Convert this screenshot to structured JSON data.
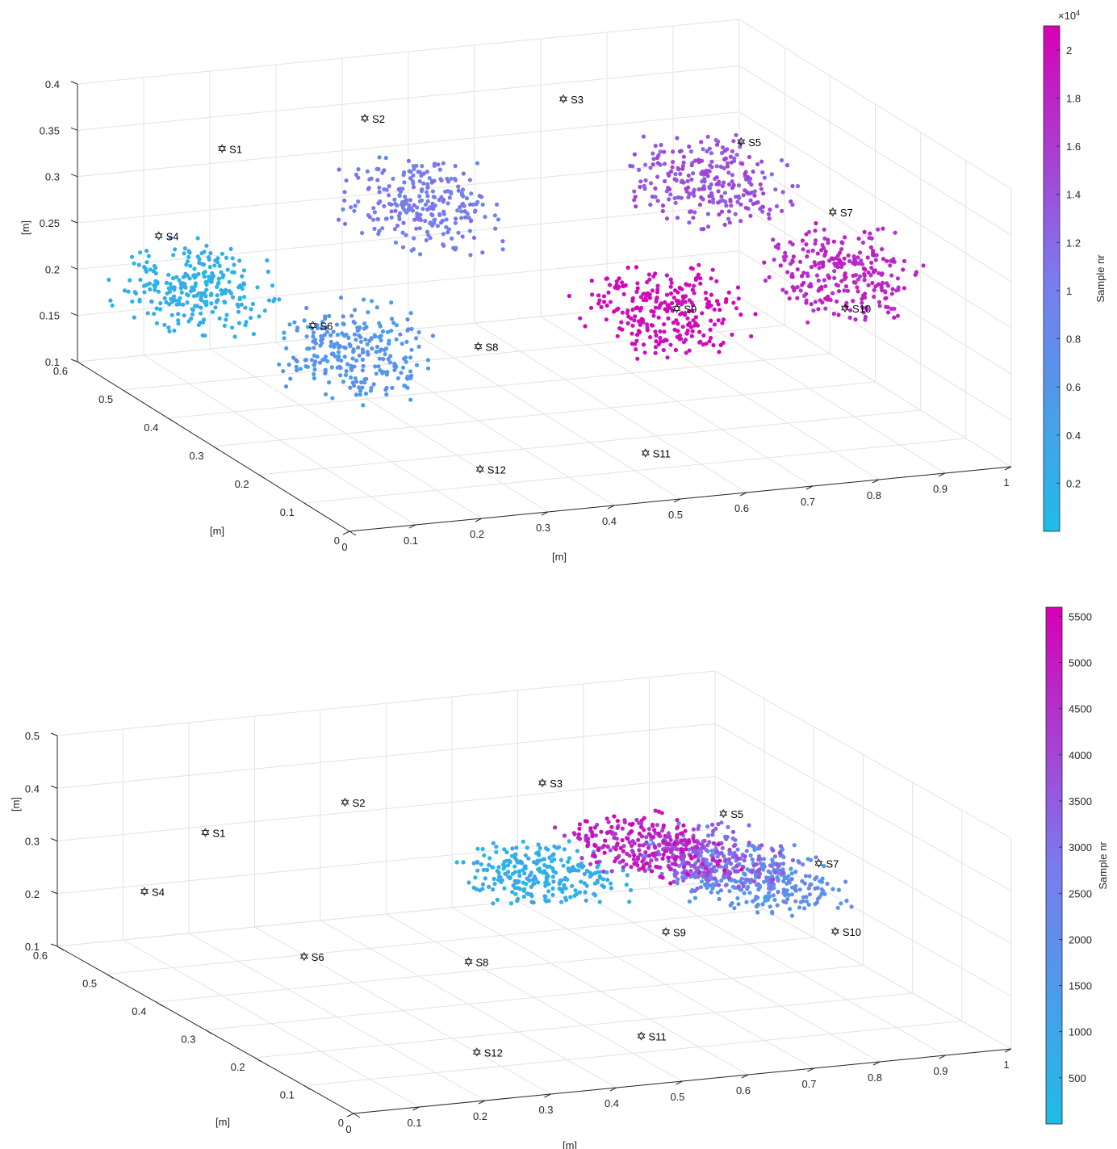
{
  "chart_data": [
    {
      "type": "scatter",
      "view": "3d",
      "axes": {
        "x": {
          "label": "[m]",
          "ticks": [
            "0",
            "0.1",
            "0.2",
            "0.3",
            "0.4",
            "0.5",
            "0.6",
            "0.7",
            "0.8",
            "0.9",
            "1"
          ],
          "range": [
            0,
            1
          ]
        },
        "y": {
          "label": "[m]",
          "ticks": [
            "0",
            "0.1",
            "0.2",
            "0.3",
            "0.4",
            "0.5",
            "0.6"
          ],
          "range": [
            0,
            0.6
          ]
        },
        "z": {
          "label": "[m]",
          "ticks": [
            "0.1",
            "0.15",
            "0.2",
            "0.25",
            "0.3",
            "0.35",
            "0.4"
          ],
          "range": [
            0.1,
            0.4
          ]
        }
      },
      "grid": true,
      "colorbar": {
        "label": "Sample nr",
        "exponent": "×10",
        "exponent_power": "4",
        "ticks": [
          "0.2",
          "0.4",
          "0.6",
          "0.8",
          "1",
          "1.2",
          "1.4",
          "1.6",
          "1.8",
          "2"
        ],
        "range": [
          0,
          2.1
        ],
        "colors": [
          "#1ebde6",
          "#7b7bee",
          "#d800b5"
        ]
      },
      "markers": [
        {
          "label": "S1",
          "x": 0.15,
          "y": 0.5,
          "z": 0.35
        },
        {
          "label": "S2",
          "x": 0.4,
          "y": 0.55,
          "z": 0.35
        },
        {
          "label": "S3",
          "x": 0.7,
          "y": 0.55,
          "z": 0.35
        },
        {
          "label": "S4",
          "x": 0.02,
          "y": 0.45,
          "z": 0.28
        },
        {
          "label": "S5",
          "x": 0.9,
          "y": 0.45,
          "z": 0.32
        },
        {
          "label": "S6",
          "x": 0.15,
          "y": 0.3,
          "z": 0.22
        },
        {
          "label": "S7",
          "x": 0.97,
          "y": 0.35,
          "z": 0.27
        },
        {
          "label": "S8",
          "x": 0.4,
          "y": 0.3,
          "z": 0.18
        },
        {
          "label": "S9",
          "x": 0.7,
          "y": 0.3,
          "z": 0.2
        },
        {
          "label": "S10",
          "x": 0.92,
          "y": 0.25,
          "z": 0.2
        },
        {
          "label": "S11",
          "x": 0.55,
          "y": 0.15,
          "z": 0.1
        },
        {
          "label": "S12",
          "x": 0.3,
          "y": 0.15,
          "z": 0.1
        }
      ],
      "trajectory_clusters": [
        {
          "sample_range": [
            0,
            4000
          ],
          "x": 0.05,
          "y": 0.42,
          "z": 0.23
        },
        {
          "sample_range": [
            4000,
            8000
          ],
          "x": 0.25,
          "y": 0.35,
          "z": 0.17
        },
        {
          "sample_range": [
            8000,
            12000
          ],
          "x": 0.45,
          "y": 0.5,
          "z": 0.27
        },
        {
          "sample_range": [
            12000,
            16000
          ],
          "x": 0.85,
          "y": 0.45,
          "z": 0.28
        },
        {
          "sample_range": [
            16000,
            19000
          ],
          "x": 0.95,
          "y": 0.3,
          "z": 0.22
        },
        {
          "sample_range": [
            19000,
            21000
          ],
          "x": 0.68,
          "y": 0.3,
          "z": 0.2
        }
      ]
    },
    {
      "type": "scatter",
      "view": "3d",
      "axes": {
        "x": {
          "label": "[m]",
          "ticks": [
            "0",
            "0.1",
            "0.2",
            "0.3",
            "0.4",
            "0.5",
            "0.6",
            "0.7",
            "0.8",
            "0.9",
            "1"
          ],
          "range": [
            0,
            1
          ]
        },
        "y": {
          "label": "[m]",
          "ticks": [
            "0",
            "0.1",
            "0.2",
            "0.3",
            "0.4",
            "0.5",
            "0.6"
          ],
          "range": [
            0,
            0.6
          ]
        },
        "z": {
          "label": "[m]",
          "ticks": [
            "0.1",
            "0.2",
            "0.3",
            "0.4",
            "0.5"
          ],
          "range": [
            0.1,
            0.5
          ]
        }
      },
      "grid": true,
      "colorbar": {
        "label": "Sample nr",
        "ticks": [
          "500",
          "1000",
          "1500",
          "2000",
          "2500",
          "3000",
          "3500",
          "4000",
          "4500",
          "5000",
          "5500"
        ],
        "range": [
          0,
          5600
        ],
        "colors": [
          "#1ebde6",
          "#7b7bee",
          "#d800b5"
        ]
      },
      "markers": [
        {
          "label": "S1",
          "x": 0.15,
          "y": 0.5,
          "z": 0.35
        },
        {
          "label": "S2",
          "x": 0.4,
          "y": 0.55,
          "z": 0.35
        },
        {
          "label": "S3",
          "x": 0.7,
          "y": 0.55,
          "z": 0.35
        },
        {
          "label": "S4",
          "x": 0.02,
          "y": 0.45,
          "z": 0.28
        },
        {
          "label": "S5",
          "x": 0.9,
          "y": 0.45,
          "z": 0.32
        },
        {
          "label": "S6",
          "x": 0.15,
          "y": 0.3,
          "z": 0.22
        },
        {
          "label": "S7",
          "x": 0.97,
          "y": 0.35,
          "z": 0.27
        },
        {
          "label": "S8",
          "x": 0.4,
          "y": 0.3,
          "z": 0.18
        },
        {
          "label": "S9",
          "x": 0.7,
          "y": 0.3,
          "z": 0.2
        },
        {
          "label": "S10",
          "x": 0.92,
          "y": 0.25,
          "z": 0.2
        },
        {
          "label": "S11",
          "x": 0.55,
          "y": 0.15,
          "z": 0.1
        },
        {
          "label": "S12",
          "x": 0.3,
          "y": 0.15,
          "z": 0.1
        }
      ],
      "trajectory_clusters": [
        {
          "sample_range": [
            0,
            1200
          ],
          "x": 0.55,
          "y": 0.35,
          "z": 0.3
        },
        {
          "sample_range": [
            1200,
            2500
          ],
          "x": 0.88,
          "y": 0.35,
          "z": 0.25
        },
        {
          "sample_range": [
            2500,
            4000
          ],
          "x": 0.85,
          "y": 0.4,
          "z": 0.27
        },
        {
          "sample_range": [
            4000,
            5600
          ],
          "x": 0.75,
          "y": 0.4,
          "z": 0.3
        }
      ]
    }
  ]
}
